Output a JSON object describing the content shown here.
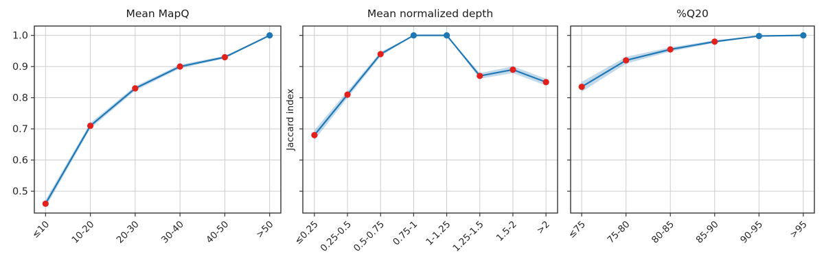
{
  "figure": {
    "background": "#ffffff",
    "palette": {
      "line": "#1f77b4",
      "band": "#1f77b4",
      "band_opacity": 0.28,
      "red": "#e2201c",
      "blue": "#1f77b4",
      "grid": "#cccccc",
      "spine": "#333333",
      "tick_text": "#262626",
      "title_text": "#1a1a1a"
    }
  },
  "chart_data": [
    {
      "type": "line",
      "title": "Mean MapQ",
      "xlabel": "",
      "ylabel": "",
      "categories": [
        "≤10",
        "10-20",
        "20-30",
        "30-40",
        "40-50",
        ">50"
      ],
      "values": [
        0.46,
        0.71,
        0.83,
        0.9,
        0.93,
        1.0
      ],
      "band_halfwidth": [
        0.012,
        0.009,
        0.007,
        0.006,
        0.004,
        0.0
      ],
      "marker_colors": [
        "red",
        "red",
        "red",
        "red",
        "red",
        "blue"
      ],
      "yticks": [
        0.5,
        0.6,
        0.7,
        0.8,
        0.9,
        1.0
      ],
      "ytick_labels": [
        "0.5",
        "0.6",
        "0.7",
        "0.8",
        "0.9",
        "1.0"
      ],
      "ytick_labels_visible": true,
      "ylim": [
        0.43,
        1.03
      ],
      "grid": true,
      "legend": null
    },
    {
      "type": "line",
      "title": "Mean normalized depth",
      "xlabel": "",
      "ylabel": "Jaccard index",
      "categories": [
        "≤0.25",
        "0.25-0.5",
        "0.5-0.75",
        "0.75-1",
        "1-1.25",
        "1.25-1.5",
        "1.5-2",
        ">2"
      ],
      "values": [
        0.68,
        0.81,
        0.94,
        1.0,
        1.0,
        0.87,
        0.89,
        0.85
      ],
      "band_halfwidth": [
        0.016,
        0.011,
        0.007,
        0.0,
        0.0,
        0.009,
        0.011,
        0.011
      ],
      "marker_colors": [
        "red",
        "red",
        "red",
        "blue",
        "blue",
        "red",
        "red",
        "red"
      ],
      "yticks": [
        0.5,
        0.6,
        0.7,
        0.8,
        0.9,
        1.0
      ],
      "ytick_labels": [
        "0.5",
        "0.6",
        "0.7",
        "0.8",
        "0.9",
        "1.0"
      ],
      "ytick_labels_visible": false,
      "ylim": [
        0.43,
        1.03
      ],
      "grid": true,
      "legend": null
    },
    {
      "type": "line",
      "title": "%Q20",
      "xlabel": "",
      "ylabel": "",
      "categories": [
        "≤75",
        "75-80",
        "80-85",
        "85-90",
        "90-95",
        ">95"
      ],
      "values": [
        0.835,
        0.92,
        0.955,
        0.98,
        0.998,
        1.0
      ],
      "band_halfwidth": [
        0.016,
        0.011,
        0.007,
        0.004,
        0.0,
        0.0
      ],
      "marker_colors": [
        "red",
        "red",
        "red",
        "red",
        "blue",
        "blue"
      ],
      "yticks": [
        0.5,
        0.6,
        0.7,
        0.8,
        0.9,
        1.0
      ],
      "ytick_labels": [
        "0.5",
        "0.6",
        "0.7",
        "0.8",
        "0.9",
        "1.0"
      ],
      "ytick_labels_visible": false,
      "ylim": [
        0.43,
        1.03
      ],
      "grid": true,
      "legend": null
    }
  ]
}
